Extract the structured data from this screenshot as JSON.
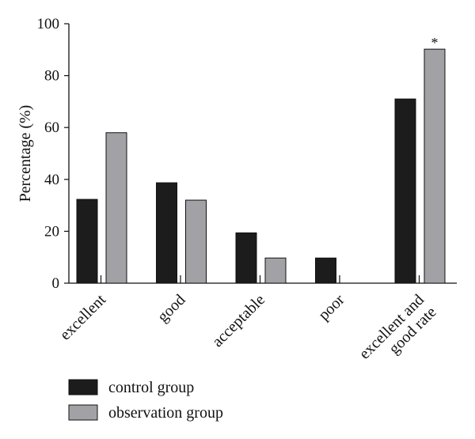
{
  "chart_data": {
    "type": "bar",
    "categories": [
      "excellent",
      "good",
      "acceptable",
      "poor",
      "excellent and good rate"
    ],
    "category_lines": [
      [
        "excellent"
      ],
      [
        "good"
      ],
      [
        "acceptable"
      ],
      [
        "poor"
      ],
      [
        "excellent and",
        "good rate"
      ]
    ],
    "series": [
      {
        "name": "control group",
        "color": "#1c1c1c",
        "values": [
          32.3,
          38.7,
          19.4,
          9.7,
          71.0
        ]
      },
      {
        "name": "observation group",
        "color": "#a2a2a6",
        "values": [
          58.0,
          32.0,
          9.7,
          0,
          90.2
        ]
      }
    ],
    "ylabel": "Percentage (%)",
    "xlabel": "",
    "ylim": [
      0,
      100
    ],
    "yticks": [
      0,
      20,
      40,
      60,
      80,
      100
    ],
    "grid": false,
    "legend_position": "bottom-left",
    "annotations": [
      {
        "text": "*",
        "category_index": 4,
        "series_index": 1
      }
    ]
  }
}
